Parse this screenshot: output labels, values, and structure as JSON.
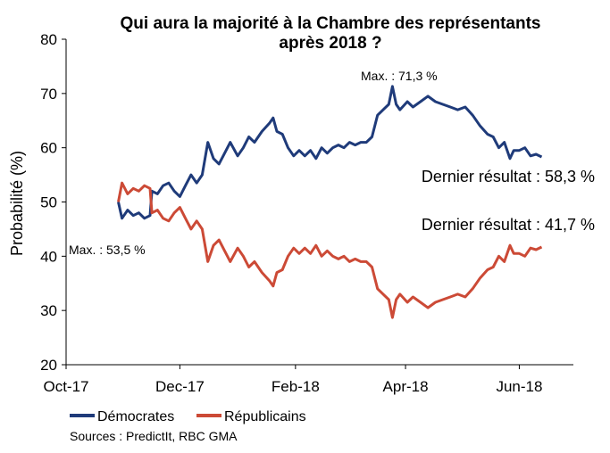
{
  "chart_data": {
    "type": "line",
    "title": "Qui aura la majorité à la Chambre des représentants",
    "subtitle": "après 2018 ?",
    "ylabel": "Probabilité (%)",
    "xlabel": "",
    "ylim": [
      20,
      80
    ],
    "yticks": [
      20,
      30,
      40,
      50,
      60,
      70,
      80
    ],
    "xlim": [
      "2017-10-01",
      "2018-06-30"
    ],
    "xticks": [
      {
        "date": "2017-10-01",
        "label": "Oct-17"
      },
      {
        "date": "2017-12-01",
        "label": "Dec-17"
      },
      {
        "date": "2018-02-01",
        "label": "Feb-18"
      },
      {
        "date": "2018-04-01",
        "label": "Apr-18"
      },
      {
        "date": "2018-06-01",
        "label": "Jun-18"
      }
    ],
    "grid": false,
    "legend": "bottom-left",
    "series": [
      {
        "name": "Démocrates",
        "color": "#1f3b7a",
        "points": [
          [
            "2017-10-29",
            50
          ],
          [
            "2017-10-31",
            47
          ],
          [
            "2017-11-03",
            48.5
          ],
          [
            "2017-11-06",
            47.5
          ],
          [
            "2017-11-09",
            48
          ],
          [
            "2017-11-12",
            47
          ],
          [
            "2017-11-15",
            47.5
          ],
          [
            "2017-11-16",
            52
          ],
          [
            "2017-11-19",
            51.5
          ],
          [
            "2017-11-22",
            53
          ],
          [
            "2017-11-25",
            53.5
          ],
          [
            "2017-11-28",
            52
          ],
          [
            "2017-12-01",
            51
          ],
          [
            "2017-12-04",
            53
          ],
          [
            "2017-12-07",
            55
          ],
          [
            "2017-12-10",
            53.5
          ],
          [
            "2017-12-13",
            55
          ],
          [
            "2017-12-16",
            61
          ],
          [
            "2017-12-19",
            58
          ],
          [
            "2017-12-22",
            57
          ],
          [
            "2017-12-25",
            59
          ],
          [
            "2017-12-28",
            61
          ],
          [
            "2018-01-01",
            58.5
          ],
          [
            "2018-01-04",
            60
          ],
          [
            "2018-01-07",
            62
          ],
          [
            "2018-01-10",
            61
          ],
          [
            "2018-01-14",
            63
          ],
          [
            "2018-01-18",
            64.5
          ],
          [
            "2018-01-20",
            65.5
          ],
          [
            "2018-01-22",
            63
          ],
          [
            "2018-01-25",
            62.5
          ],
          [
            "2018-01-28",
            60
          ],
          [
            "2018-01-31",
            58.5
          ],
          [
            "2018-02-03",
            59.5
          ],
          [
            "2018-02-06",
            58.5
          ],
          [
            "2018-02-09",
            59.5
          ],
          [
            "2018-02-12",
            58
          ],
          [
            "2018-02-15",
            60
          ],
          [
            "2018-02-18",
            59
          ],
          [
            "2018-02-21",
            60
          ],
          [
            "2018-02-24",
            60.5
          ],
          [
            "2018-02-27",
            60
          ],
          [
            "2018-03-02",
            61
          ],
          [
            "2018-03-05",
            60.5
          ],
          [
            "2018-03-08",
            61
          ],
          [
            "2018-03-11",
            61
          ],
          [
            "2018-03-14",
            62
          ],
          [
            "2018-03-17",
            66
          ],
          [
            "2018-03-20",
            67
          ],
          [
            "2018-03-23",
            68
          ],
          [
            "2018-03-25",
            71.3
          ],
          [
            "2018-03-27",
            68
          ],
          [
            "2018-03-29",
            67
          ],
          [
            "2018-04-02",
            68.5
          ],
          [
            "2018-04-05",
            67.5
          ],
          [
            "2018-04-09",
            68.5
          ],
          [
            "2018-04-13",
            69.5
          ],
          [
            "2018-04-17",
            68.5
          ],
          [
            "2018-04-21",
            68
          ],
          [
            "2018-04-25",
            67.5
          ],
          [
            "2018-04-29",
            67
          ],
          [
            "2018-05-03",
            67.5
          ],
          [
            "2018-05-07",
            66
          ],
          [
            "2018-05-11",
            64
          ],
          [
            "2018-05-15",
            62.5
          ],
          [
            "2018-05-18",
            62
          ],
          [
            "2018-05-21",
            60
          ],
          [
            "2018-05-24",
            61
          ],
          [
            "2018-05-27",
            58
          ],
          [
            "2018-05-29",
            59.5
          ],
          [
            "2018-06-01",
            59.5
          ],
          [
            "2018-06-04",
            60
          ],
          [
            "2018-06-07",
            58.5
          ],
          [
            "2018-06-10",
            58.8
          ],
          [
            "2018-06-13",
            58.3
          ]
        ]
      },
      {
        "name": "Républicains",
        "color": "#cc4a36",
        "points": [
          [
            "2017-10-29",
            50
          ],
          [
            "2017-10-31",
            53.5
          ],
          [
            "2017-11-03",
            51.5
          ],
          [
            "2017-11-06",
            52.5
          ],
          [
            "2017-11-09",
            52
          ],
          [
            "2017-11-12",
            53
          ],
          [
            "2017-11-15",
            52.5
          ],
          [
            "2017-11-16",
            48
          ],
          [
            "2017-11-19",
            48.5
          ],
          [
            "2017-11-22",
            47
          ],
          [
            "2017-11-25",
            46.5
          ],
          [
            "2017-11-28",
            48
          ],
          [
            "2017-12-01",
            49
          ],
          [
            "2017-12-04",
            47
          ],
          [
            "2017-12-07",
            45
          ],
          [
            "2017-12-10",
            46.5
          ],
          [
            "2017-12-13",
            45
          ],
          [
            "2017-12-16",
            39
          ],
          [
            "2017-12-19",
            42
          ],
          [
            "2017-12-22",
            43
          ],
          [
            "2017-12-25",
            41
          ],
          [
            "2017-12-28",
            39
          ],
          [
            "2018-01-01",
            41.5
          ],
          [
            "2018-01-04",
            40
          ],
          [
            "2018-01-07",
            38
          ],
          [
            "2018-01-10",
            39
          ],
          [
            "2018-01-14",
            37
          ],
          [
            "2018-01-18",
            35.5
          ],
          [
            "2018-01-20",
            34.5
          ],
          [
            "2018-01-22",
            37
          ],
          [
            "2018-01-25",
            37.5
          ],
          [
            "2018-01-28",
            40
          ],
          [
            "2018-01-31",
            41.5
          ],
          [
            "2018-02-03",
            40.5
          ],
          [
            "2018-02-06",
            41.5
          ],
          [
            "2018-02-09",
            40.5
          ],
          [
            "2018-02-12",
            42
          ],
          [
            "2018-02-15",
            40
          ],
          [
            "2018-02-18",
            41
          ],
          [
            "2018-02-21",
            40
          ],
          [
            "2018-02-24",
            39.5
          ],
          [
            "2018-02-27",
            40
          ],
          [
            "2018-03-02",
            39
          ],
          [
            "2018-03-05",
            39.5
          ],
          [
            "2018-03-08",
            39
          ],
          [
            "2018-03-11",
            39
          ],
          [
            "2018-03-14",
            38
          ],
          [
            "2018-03-17",
            34
          ],
          [
            "2018-03-20",
            33
          ],
          [
            "2018-03-23",
            32
          ],
          [
            "2018-03-25",
            28.7
          ],
          [
            "2018-03-27",
            32
          ],
          [
            "2018-03-29",
            33
          ],
          [
            "2018-04-02",
            31.5
          ],
          [
            "2018-04-05",
            32.5
          ],
          [
            "2018-04-09",
            31.5
          ],
          [
            "2018-04-13",
            30.5
          ],
          [
            "2018-04-17",
            31.5
          ],
          [
            "2018-04-21",
            32
          ],
          [
            "2018-04-25",
            32.5
          ],
          [
            "2018-04-29",
            33
          ],
          [
            "2018-05-03",
            32.5
          ],
          [
            "2018-05-07",
            34
          ],
          [
            "2018-05-11",
            36
          ],
          [
            "2018-05-15",
            37.5
          ],
          [
            "2018-05-18",
            38
          ],
          [
            "2018-05-21",
            40
          ],
          [
            "2018-05-24",
            39
          ],
          [
            "2018-05-27",
            42
          ],
          [
            "2018-05-29",
            40.5
          ],
          [
            "2018-06-01",
            40.5
          ],
          [
            "2018-06-04",
            40
          ],
          [
            "2018-06-07",
            41.5
          ],
          [
            "2018-06-10",
            41.2
          ],
          [
            "2018-06-13",
            41.7
          ]
        ]
      }
    ],
    "annotations": [
      {
        "text": "Max. : 71,3 %",
        "series": "Démocrates",
        "date": "2018-03-25",
        "value": 71.3
      },
      {
        "text": "Max. : 53,5 %",
        "series": "Républicains",
        "date": "2017-10-31",
        "value": 53.5
      },
      {
        "text": "Dernier résultat : 58,3 %",
        "series": "Démocrates",
        "value": 58.3
      },
      {
        "text": "Dernier résultat : 41,7 %",
        "series": "Républicains",
        "value": 41.7
      }
    ]
  },
  "legend_items": [
    "Démocrates",
    "Républicains"
  ],
  "source": "Sources : PredictIt, RBC GMA"
}
